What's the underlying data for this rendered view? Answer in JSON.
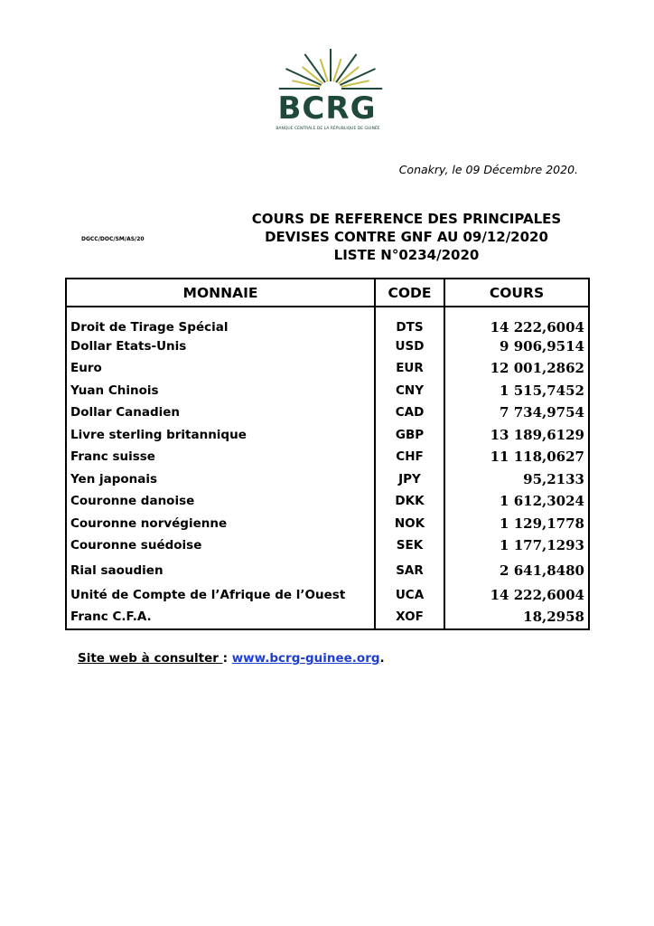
{
  "logo": {
    "text": "BCRG",
    "subtitle": "BANQUE CENTRALE DE LA RÉPUBLIQUE DE GUINÉE",
    "colors": {
      "green": "#1f4a3a",
      "gold": "#c9c04a"
    }
  },
  "place_date": "Conakry, le 09 Décembre 2020.",
  "reference": "DGCC/DOC/SM/AS/20",
  "title_lines": [
    "COURS DE REFERENCE DES PRINCIPALES",
    "DEVISES CONTRE GNF AU  09/12/2020",
    "LISTE N°0234/2020"
  ],
  "table": {
    "headers": [
      "MONNAIE",
      "CODE",
      "COURS"
    ],
    "rows": [
      {
        "name": "Droit de Tirage Spécial",
        "code": "DTS",
        "rate": "14 222,6004"
      },
      {
        "name": "Dollar Etats-Unis",
        "code": "USD",
        "rate": "9 906,9514"
      },
      {
        "name": "Euro",
        "code": "EUR",
        "rate": "12 001,2862"
      },
      {
        "name": "Yuan Chinois",
        "code": "CNY",
        "rate": "1 515,7452"
      },
      {
        "name": "Dollar Canadien",
        "code": "CAD",
        "rate": "7 734,9754"
      },
      {
        "name": "Livre sterling britannique",
        "code": "GBP",
        "rate": "13 189,6129"
      },
      {
        "name": "Franc suisse",
        "code": "CHF",
        "rate": "11 118,0627"
      },
      {
        "name": "Yen japonais",
        "code": "JPY",
        "rate": "95,2133"
      },
      {
        "name": "Couronne danoise",
        "code": "DKK",
        "rate": "1 612,3024"
      },
      {
        "name": "Couronne norvégienne",
        "code": "NOK",
        "rate": "1 129,1778"
      },
      {
        "name": "Couronne suédoise",
        "code": "SEK",
        "rate": "1 177,1293"
      },
      {
        "name": "Rial saoudien",
        "code": "SAR",
        "rate": "2 641,8480"
      },
      {
        "name": "Unité de Compte de l’Afrique de l’Ouest",
        "code": "UCA",
        "rate": "14 222,6004"
      },
      {
        "name": "Franc C.F.A.",
        "code": "XOF",
        "rate": "18,2958"
      }
    ]
  },
  "footer": {
    "label": "Site web à consulter ",
    "sep": ": ",
    "link": "www.bcrg-guinee.org",
    "end": "."
  }
}
